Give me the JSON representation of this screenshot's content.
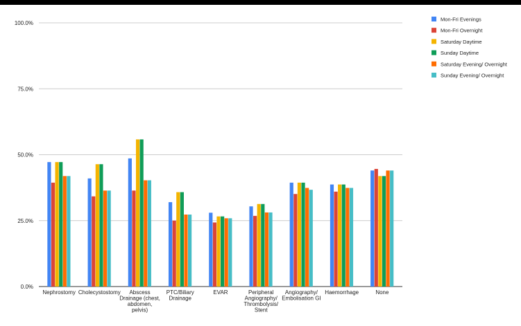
{
  "chart_data": {
    "type": "bar",
    "title": "",
    "xlabel": "",
    "ylabel": "",
    "ylim": [
      0,
      100
    ],
    "yticks": [
      "0.0%",
      "25.0%",
      "50.0%",
      "75.0%",
      "100.0%"
    ],
    "grid": true,
    "legend_position": "top-right",
    "categories": [
      [
        "Nephrostomy"
      ],
      [
        "Cholecystostomy"
      ],
      [
        "Abscess",
        "Drainage (chest,",
        "abdomen,",
        "pelvis)"
      ],
      [
        "PTC/Biliary",
        "Drainage"
      ],
      [
        "EVAR"
      ],
      [
        "Peripheral",
        "Angiography/",
        "Thrombolysis/",
        "Stent"
      ],
      [
        "Angiography/",
        "Embolisation GI"
      ],
      [
        "Haemorrhage"
      ],
      [
        "None"
      ]
    ],
    "series": [
      {
        "name": "Mon-Fri Evenings",
        "color": "#4285F4",
        "values": [
          47.2,
          41.0,
          48.6,
          32.0,
          28.0,
          30.4,
          39.4,
          38.7,
          44.0
        ]
      },
      {
        "name": "Mon-Fri Overnight",
        "color": "#DB4437",
        "values": [
          39.4,
          34.2,
          36.4,
          25.0,
          24.3,
          26.8,
          35.1,
          36.0,
          44.6
        ]
      },
      {
        "name": "Saturday Daytime",
        "color": "#F4B400",
        "values": [
          47.2,
          46.4,
          55.8,
          35.8,
          26.6,
          31.3,
          39.4,
          38.7,
          41.9
        ]
      },
      {
        "name": "Sunday Daytime",
        "color": "#0F9D58",
        "values": [
          47.2,
          46.4,
          55.8,
          35.8,
          26.6,
          31.3,
          39.4,
          38.7,
          41.9
        ]
      },
      {
        "name": "Saturday Evening/ Overnight",
        "color": "#FF6D01",
        "values": [
          41.9,
          36.4,
          40.3,
          27.3,
          25.9,
          28.1,
          37.4,
          37.4,
          44.0
        ]
      },
      {
        "name": "Sunday Evening/ Overnight",
        "color": "#46BDC6",
        "values": [
          41.9,
          36.4,
          40.3,
          27.3,
          25.9,
          28.1,
          36.7,
          37.4,
          44.0
        ]
      }
    ]
  }
}
